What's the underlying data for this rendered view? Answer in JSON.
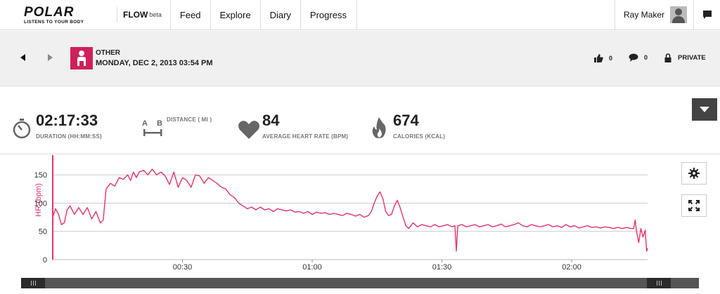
{
  "brand": {
    "name": "POLAR",
    "tagline": "LISTENS TO YOUR BODY",
    "product": "FLOW",
    "product_suffix": "beta"
  },
  "nav": {
    "items": [
      "Feed",
      "Explore",
      "Diary",
      "Progress"
    ]
  },
  "user": {
    "name": "Ray Maker"
  },
  "session": {
    "sport": "OTHER",
    "datetime": "MONDAY, DEC 2, 2013 03:54 PM",
    "likes": "0",
    "comments": "0",
    "privacy": "PRIVATE"
  },
  "summary": {
    "duration": {
      "value": "02:17:33",
      "label": "DURATION (HH:MM:SS)"
    },
    "distance": {
      "value": "",
      "label": "DISTANCE ( MI )",
      "icon_a": "A",
      "icon_b": "B"
    },
    "heart_rate": {
      "value": "84",
      "label": "AVERAGE HEART RATE (BPM)"
    },
    "calories": {
      "value": "674",
      "label": "CALORIES (KCAL)"
    }
  },
  "icons": {
    "nav_message": "message-icon",
    "like": "thumbs-up-icon",
    "comment": "comment-icon",
    "lock": "lock-icon",
    "settings": "gear-icon",
    "fullscreen": "fullscreen-icon"
  },
  "colors": {
    "accent": "#e8336a",
    "sport_tile": "#d0205c"
  },
  "chart_data": {
    "type": "line",
    "title": "",
    "xlabel": "",
    "ylabel": "HR (bpm)",
    "ylim": [
      0,
      185
    ],
    "yticks": [
      0,
      50,
      100,
      150
    ],
    "xlim": [
      0,
      8253
    ],
    "xticks": [
      {
        "t": 1800,
        "label": "00:30"
      },
      {
        "t": 3600,
        "label": "01:00"
      },
      {
        "t": 5400,
        "label": "01:30"
      },
      {
        "t": 7200,
        "label": "02:00"
      }
    ],
    "grid": true,
    "series": [
      {
        "color": "#e8336a",
        "points": [
          [
            0,
            75
          ],
          [
            40,
            90
          ],
          [
            80,
            80
          ],
          [
            120,
            62
          ],
          [
            160,
            65
          ],
          [
            200,
            88
          ],
          [
            240,
            95
          ],
          [
            300,
            80
          ],
          [
            360,
            92
          ],
          [
            420,
            80
          ],
          [
            480,
            92
          ],
          [
            540,
            72
          ],
          [
            600,
            85
          ],
          [
            660,
            65
          ],
          [
            700,
            70
          ],
          [
            740,
            125
          ],
          [
            800,
            135
          ],
          [
            860,
            130
          ],
          [
            920,
            145
          ],
          [
            980,
            142
          ],
          [
            1040,
            150
          ],
          [
            1080,
            140
          ],
          [
            1120,
            155
          ],
          [
            1160,
            145
          ],
          [
            1200,
            155
          ],
          [
            1260,
            158
          ],
          [
            1320,
            150
          ],
          [
            1380,
            160
          ],
          [
            1440,
            150
          ],
          [
            1500,
            155
          ],
          [
            1560,
            148
          ],
          [
            1620,
            133
          ],
          [
            1680,
            155
          ],
          [
            1740,
            128
          ],
          [
            1800,
            145
          ],
          [
            1860,
            140
          ],
          [
            1920,
            128
          ],
          [
            1980,
            150
          ],
          [
            2040,
            148
          ],
          [
            2100,
            135
          ],
          [
            2160,
            145
          ],
          [
            2220,
            140
          ],
          [
            2280,
            135
          ],
          [
            2340,
            128
          ],
          [
            2400,
            125
          ],
          [
            2460,
            115
          ],
          [
            2520,
            110
          ],
          [
            2580,
            100
          ],
          [
            2640,
            95
          ],
          [
            2700,
            90
          ],
          [
            2760,
            93
          ],
          [
            2820,
            88
          ],
          [
            2880,
            93
          ],
          [
            2940,
            88
          ],
          [
            3000,
            90
          ],
          [
            3060,
            85
          ],
          [
            3120,
            90
          ],
          [
            3180,
            88
          ],
          [
            3240,
            86
          ],
          [
            3300,
            88
          ],
          [
            3360,
            84
          ],
          [
            3420,
            85
          ],
          [
            3480,
            82
          ],
          [
            3540,
            85
          ],
          [
            3600,
            80
          ],
          [
            3660,
            84
          ],
          [
            3720,
            82
          ],
          [
            3780,
            83
          ],
          [
            3840,
            80
          ],
          [
            3900,
            82
          ],
          [
            3960,
            80
          ],
          [
            4020,
            78
          ],
          [
            4080,
            82
          ],
          [
            4140,
            80
          ],
          [
            4200,
            77
          ],
          [
            4260,
            80
          ],
          [
            4320,
            75
          ],
          [
            4380,
            78
          ],
          [
            4420,
            85
          ],
          [
            4460,
            100
          ],
          [
            4500,
            112
          ],
          [
            4540,
            120
          ],
          [
            4580,
            108
          ],
          [
            4620,
            85
          ],
          [
            4660,
            78
          ],
          [
            4700,
            80
          ],
          [
            4740,
            95
          ],
          [
            4780,
            105
          ],
          [
            4820,
            92
          ],
          [
            4860,
            75
          ],
          [
            4900,
            60
          ],
          [
            4940,
            55
          ],
          [
            5000,
            65
          ],
          [
            5060,
            58
          ],
          [
            5120,
            62
          ],
          [
            5180,
            60
          ],
          [
            5240,
            58
          ],
          [
            5300,
            62
          ],
          [
            5360,
            58
          ],
          [
            5420,
            60
          ],
          [
            5480,
            62
          ],
          [
            5540,
            58
          ],
          [
            5580,
            60
          ],
          [
            5600,
            15
          ],
          [
            5620,
            60
          ],
          [
            5680,
            62
          ],
          [
            5740,
            58
          ],
          [
            5800,
            60
          ],
          [
            5860,
            62
          ],
          [
            5920,
            58
          ],
          [
            5980,
            60
          ],
          [
            6040,
            62
          ],
          [
            6100,
            58
          ],
          [
            6160,
            60
          ],
          [
            6220,
            63
          ],
          [
            6280,
            58
          ],
          [
            6340,
            60
          ],
          [
            6400,
            62
          ],
          [
            6460,
            65
          ],
          [
            6520,
            60
          ],
          [
            6580,
            58
          ],
          [
            6640,
            62
          ],
          [
            6700,
            60
          ],
          [
            6760,
            58
          ],
          [
            6820,
            60
          ],
          [
            6880,
            62
          ],
          [
            6940,
            58
          ],
          [
            7000,
            60
          ],
          [
            7060,
            57
          ],
          [
            7120,
            62
          ],
          [
            7180,
            58
          ],
          [
            7240,
            60
          ],
          [
            7300,
            56
          ],
          [
            7360,
            58
          ],
          [
            7420,
            60
          ],
          [
            7480,
            57
          ],
          [
            7540,
            58
          ],
          [
            7600,
            56
          ],
          [
            7660,
            58
          ],
          [
            7720,
            57
          ],
          [
            7780,
            55
          ],
          [
            7840,
            57
          ],
          [
            7900,
            55
          ],
          [
            7960,
            57
          ],
          [
            8020,
            55
          ],
          [
            8060,
            55
          ],
          [
            8080,
            70
          ],
          [
            8100,
            50
          ],
          [
            8130,
            30
          ],
          [
            8160,
            55
          ],
          [
            8190,
            40
          ],
          [
            8220,
            52
          ],
          [
            8240,
            15
          ],
          [
            8253,
            20
          ]
        ]
      }
    ]
  }
}
